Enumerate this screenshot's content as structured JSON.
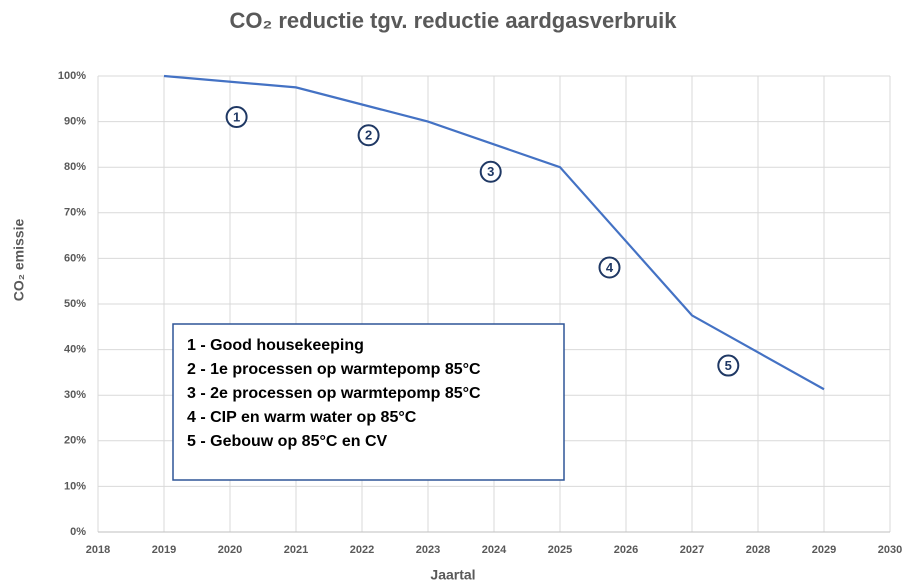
{
  "chart_data": {
    "type": "line",
    "title": "CO₂ reductie tgv. reductie aardgasverbruik",
    "xlabel": "Jaartal",
    "ylabel": "CO₂ emissie",
    "x": [
      2019,
      2021,
      2023,
      2025,
      2027,
      2029
    ],
    "values": [
      100,
      97.5,
      90,
      80,
      47.5,
      31.3
    ],
    "color": "#4472c4",
    "xlim": [
      2018,
      2030
    ],
    "xticks": [
      2018,
      2019,
      2020,
      2021,
      2022,
      2023,
      2024,
      2025,
      2026,
      2027,
      2028,
      2029,
      2030
    ],
    "ylim": [
      0,
      100
    ],
    "yticks": [
      {
        "value": 0,
        "label": "0%"
      },
      {
        "value": 10,
        "label": "10%"
      },
      {
        "value": 20,
        "label": "20%"
      },
      {
        "value": 30,
        "label": "30%"
      },
      {
        "value": 40,
        "label": "40%"
      },
      {
        "value": 50,
        "label": "50%"
      },
      {
        "value": 60,
        "label": "60%"
      },
      {
        "value": 70,
        "label": "70%"
      },
      {
        "value": 80,
        "label": "80%"
      },
      {
        "value": 90,
        "label": "90%"
      },
      {
        "value": 100,
        "label": "100%"
      }
    ],
    "grid": true,
    "annotations": [
      {
        "text": "1",
        "x": 2020.1,
        "y": 91
      },
      {
        "text": "2",
        "x": 2022.1,
        "y": 87
      },
      {
        "text": "3",
        "x": 2023.95,
        "y": 79
      },
      {
        "text": "4",
        "x": 2025.75,
        "y": 58
      },
      {
        "text": "5",
        "x": 2027.55,
        "y": 36.5
      }
    ],
    "notes": [
      "1 - Good housekeeping",
      "2 - 1e processen op warmtepomp 85°C",
      "3 - 2e processen op warmtepomp 85°C",
      "4 - CIP en warm water op 85°C",
      "5 - Gebouw op 85°C en CV"
    ]
  }
}
